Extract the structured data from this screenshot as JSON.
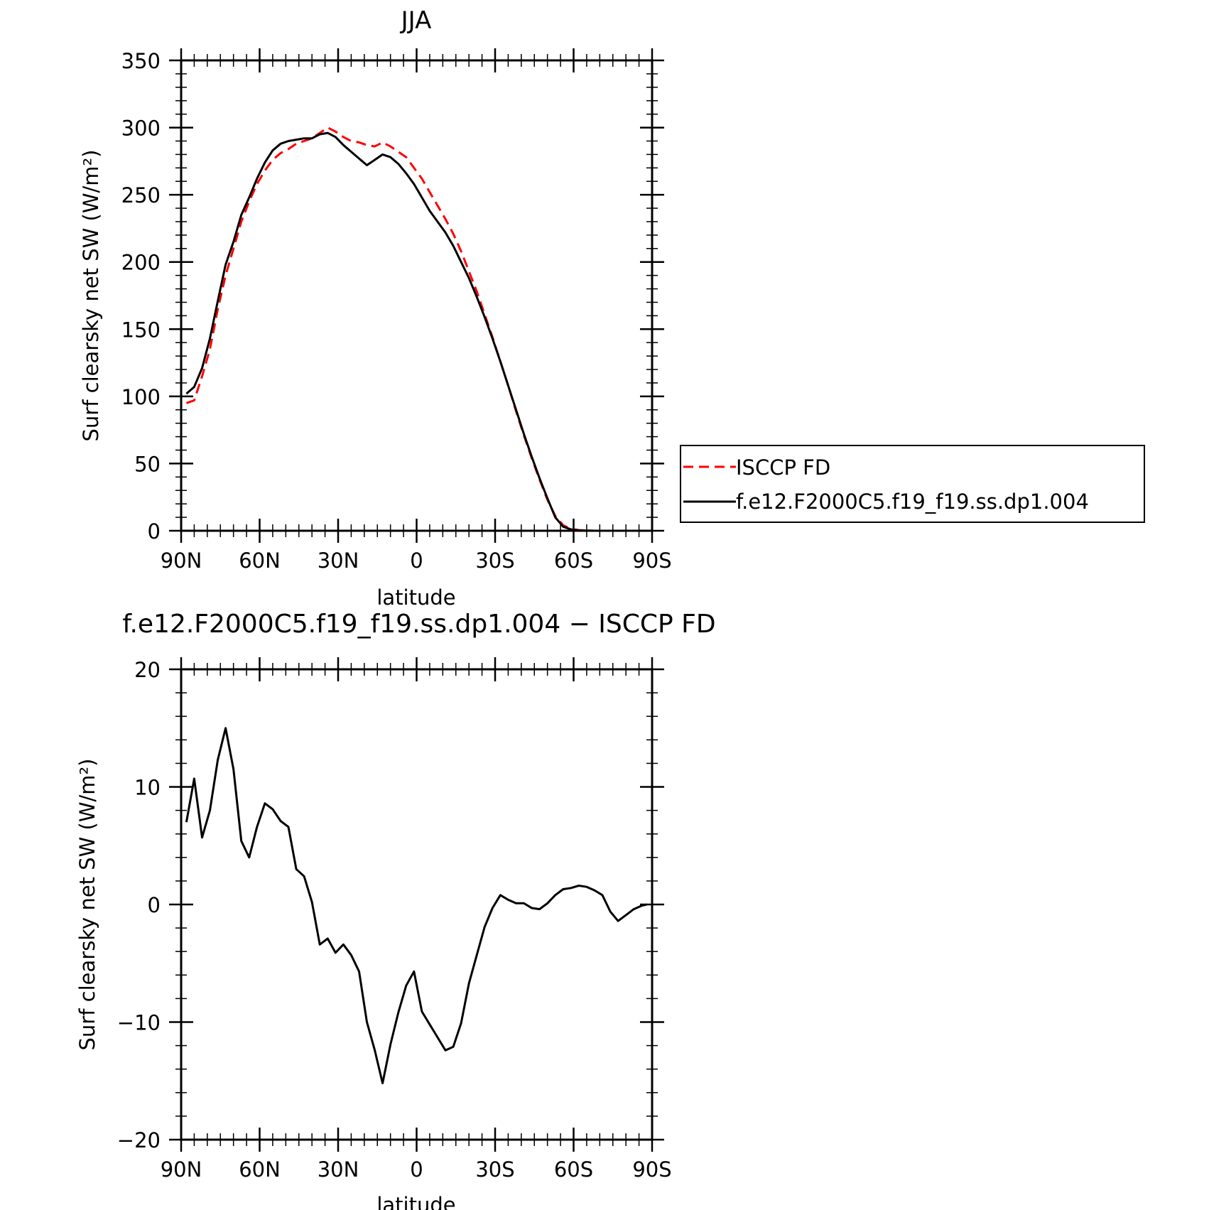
{
  "chart_data": [
    {
      "type": "line",
      "title": "JJA",
      "xlabel": "latitude",
      "ylabel": "Surf clearsky net SW (W/m²)",
      "xlim": [
        90,
        -90
      ],
      "ylim": [
        0,
        350
      ],
      "x_ticks": [
        90,
        60,
        30,
        0,
        -30,
        -60,
        -90
      ],
      "x_tick_labels": [
        "90N",
        "60N",
        "30N",
        "0",
        "30S",
        "60S",
        "90S"
      ],
      "y_ticks": [
        0,
        50,
        100,
        150,
        200,
        250,
        300,
        350
      ],
      "y_tick_labels": [
        "0",
        "50",
        "100",
        "150",
        "200",
        "250",
        "300",
        "350"
      ],
      "legend": {
        "placement": "right"
      },
      "x": [
        88,
        85,
        82,
        79,
        76,
        73,
        70,
        67,
        64,
        61,
        58,
        55,
        52,
        49,
        46,
        43,
        40,
        37,
        34,
        31,
        28,
        25,
        22,
        19,
        16,
        13,
        10,
        7,
        4,
        1,
        -2,
        -5,
        -8,
        -11,
        -14,
        -17,
        -20,
        -23,
        -26,
        -29,
        -32,
        -35,
        -38,
        -41,
        -44,
        -47,
        -50,
        -53,
        -56,
        -59,
        -62,
        -65,
        -68,
        -71,
        -74,
        -77,
        -80,
        -83,
        -86,
        -88
      ],
      "series": [
        {
          "name": "ISCCP FD",
          "color": "#ff0000",
          "dash": "dashed",
          "values": [
            95,
            97,
            115,
            135,
            165,
            190,
            210,
            230,
            245,
            258,
            268,
            276,
            281,
            284,
            288,
            290,
            292,
            296,
            300,
            297,
            293,
            290,
            289,
            287,
            286,
            289,
            286,
            282,
            278,
            270,
            262,
            252,
            242,
            232,
            221,
            208,
            193,
            178,
            161,
            144,
            126,
            108,
            89,
            71,
            54,
            38,
            23,
            11,
            4,
            1.5,
            0.5,
            0.2,
            0,
            0,
            0,
            0,
            0,
            0,
            0,
            0
          ]
        },
        {
          "name": "f.e12.F2000C5.f19_f19.ss.dp1.004",
          "color": "#000000",
          "dash": "solid",
          "values": [
            102,
            107,
            121,
            143,
            171,
            198,
            215,
            235,
            248,
            262,
            274,
            283,
            288,
            290,
            291,
            292,
            292,
            295,
            296,
            293,
            287,
            282,
            277,
            272,
            276,
            280,
            278,
            273,
            266,
            258,
            248,
            238,
            230,
            222,
            212,
            200,
            188,
            174,
            159,
            143,
            126,
            108,
            90,
            72,
            55,
            39,
            24,
            10,
            3,
            1,
            0.3,
            0.1,
            0,
            0,
            0,
            0,
            0,
            0,
            0,
            0
          ]
        }
      ]
    },
    {
      "type": "line",
      "title": "f.e12.F2000C5.f19_f19.ss.dp1.004 − ISCCP FD",
      "xlabel": "latitude",
      "ylabel": "Surf clearsky net SW (W/m²)",
      "xlim": [
        90,
        -90
      ],
      "ylim": [
        -20,
        20
      ],
      "x_ticks": [
        90,
        60,
        30,
        0,
        -30,
        -60,
        -90
      ],
      "x_tick_labels": [
        "90N",
        "60N",
        "30N",
        "0",
        "30S",
        "60S",
        "90S"
      ],
      "y_ticks": [
        -20,
        -10,
        0,
        10,
        20
      ],
      "y_tick_labels": [
        "−20",
        "−10",
        "0",
        "10",
        "20"
      ],
      "x": [
        88,
        85,
        82,
        79,
        76,
        73,
        70,
        67,
        64,
        61,
        58,
        55,
        52,
        49,
        46,
        43,
        40,
        37,
        34,
        31,
        28,
        25,
        22,
        19,
        16,
        13,
        10,
        7,
        4,
        1,
        -2,
        -5,
        -8,
        -11,
        -14,
        -17,
        -20,
        -23,
        -26,
        -29,
        -32,
        -35,
        -38,
        -41,
        -44,
        -47,
        -50,
        -53,
        -56,
        -59,
        -62,
        -65,
        -68,
        -71,
        -74,
        -77,
        -80,
        -83,
        -86,
        -88
      ],
      "series": [
        {
          "color": "#000000",
          "values": [
            7,
            10.7,
            5.7,
            8,
            12.3,
            15,
            11.5,
            5.4,
            4,
            6.6,
            8.6,
            8.1,
            7.1,
            6.6,
            3,
            2.4,
            0.2,
            -3.4,
            -2.9,
            -4.1,
            -3.4,
            -4.3,
            -5.7,
            -10,
            -12.4,
            -15.2,
            -11.9,
            -9.2,
            -6.9,
            -5.7,
            -9.1,
            -10.2,
            -11.3,
            -12.4,
            -12.1,
            -10.1,
            -6.7,
            -4.3,
            -1.9,
            -0.3,
            0.8,
            0.4,
            0.1,
            0.1,
            -0.3,
            -0.4,
            0.1,
            0.8,
            1.3,
            1.4,
            1.6,
            1.5,
            1.2,
            0.8,
            -0.6,
            -1.4,
            -0.9,
            -0.4,
            -0.1,
            0
          ]
        }
      ]
    }
  ]
}
